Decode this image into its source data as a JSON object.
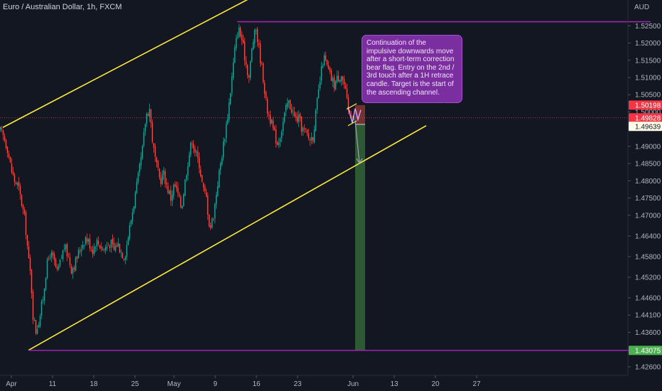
{
  "header": {
    "title": "Euro / Australian Dollar, 1h, FXCM",
    "currency": "AUD"
  },
  "annotation": {
    "text": "Continuation of the impulsive downwards move after a short-term correction bear flag. Entry on the 2nd / 3rd touch after a 1H retrace candle. Target is the start of the ascending channel."
  },
  "colors": {
    "background": "#131722",
    "up_candle": "#26a69a",
    "down_candle": "#ef5350",
    "channel": "#ffeb3b",
    "horizontal": "#9c27b0",
    "annotation": "#7b2ea0",
    "stop_zone": "#7a3134",
    "target_zone": "#2e5e36"
  },
  "price_tags": [
    {
      "label": "1.50198",
      "value": 1.50198,
      "bg": "#f23645",
      "fg": "#ffffff"
    },
    {
      "label": "1.49828",
      "value": 1.49828,
      "bg": "#f23645",
      "fg": "#ffffff"
    },
    {
      "label": "1.49639",
      "value": 1.49639,
      "bg": "#fffde7",
      "fg": "#131722"
    },
    {
      "label": "1.43075",
      "value": 1.43075,
      "bg": "#4caf50",
      "fg": "#ffffff"
    }
  ],
  "chart_data": {
    "type": "candlestick",
    "title": "Euro / Australian Dollar, 1h, FXCM",
    "y_axis": {
      "label": "AUD",
      "min": 1.4235,
      "max": 1.5325,
      "ticks": [
        "1.52500",
        "1.52000",
        "1.51500",
        "1.51000",
        "1.50500",
        "1.50000",
        "1.49000",
        "1.48500",
        "1.48000",
        "1.47500",
        "1.47000",
        "1.46400",
        "1.45800",
        "1.45200",
        "1.44600",
        "1.44100",
        "1.43600",
        "1.42600"
      ]
    },
    "x_axis": {
      "ticks": [
        "Apr",
        "11",
        "18",
        "25",
        "May",
        "9",
        "16",
        "23",
        "Jun",
        "13",
        "20",
        "27"
      ]
    },
    "price_path": [
      [
        0,
        1.4945
      ],
      [
        5,
        1.4925
      ],
      [
        10,
        1.4895
      ],
      [
        15,
        1.4835
      ],
      [
        20,
        1.48
      ],
      [
        25,
        1.4785
      ],
      [
        30,
        1.4735
      ],
      [
        35,
        1.468
      ],
      [
        40,
        1.4565
      ],
      [
        43,
        1.452
      ],
      [
        46,
        1.441
      ],
      [
        50,
        1.4365
      ],
      [
        55,
        1.44
      ],
      [
        60,
        1.446
      ],
      [
        65,
        1.455
      ],
      [
        70,
        1.459
      ],
      [
        75,
        1.457
      ],
      [
        80,
        1.453
      ],
      [
        85,
        1.457
      ],
      [
        90,
        1.461
      ],
      [
        95,
        1.4585
      ],
      [
        100,
        1.4545
      ],
      [
        105,
        1.456
      ],
      [
        110,
        1.459
      ],
      [
        115,
        1.4615
      ],
      [
        120,
        1.4635
      ],
      [
        125,
        1.462
      ],
      [
        130,
        1.46
      ],
      [
        135,
        1.4625
      ],
      [
        140,
        1.4615
      ],
      [
        145,
        1.46
      ],
      [
        150,
        1.461
      ],
      [
        155,
        1.462
      ],
      [
        160,
        1.46
      ],
      [
        165,
        1.462
      ],
      [
        170,
        1.4595
      ],
      [
        175,
        1.458
      ],
      [
        180,
        1.464
      ],
      [
        185,
        1.47
      ],
      [
        190,
        1.476
      ],
      [
        195,
        1.482
      ],
      [
        200,
        1.489
      ],
      [
        205,
        1.499
      ],
      [
        210,
        1.501
      ],
      [
        215,
        1.49
      ],
      [
        220,
        1.484
      ],
      [
        225,
        1.48
      ],
      [
        230,
        1.482
      ],
      [
        235,
        1.478
      ],
      [
        240,
        1.475
      ],
      [
        245,
        1.479
      ],
      [
        250,
        1.476
      ],
      [
        255,
        1.472
      ],
      [
        260,
        1.48
      ],
      [
        265,
        1.487
      ],
      [
        270,
        1.492
      ],
      [
        275,
        1.488
      ],
      [
        280,
        1.485
      ],
      [
        285,
        1.478
      ],
      [
        290,
        1.475
      ],
      [
        295,
        1.466
      ],
      [
        300,
        1.47
      ],
      [
        305,
        1.478
      ],
      [
        310,
        1.485
      ],
      [
        315,
        1.492
      ],
      [
        320,
        1.499
      ],
      [
        325,
        1.508
      ],
      [
        330,
        1.518
      ],
      [
        335,
        1.5245
      ],
      [
        340,
        1.521
      ],
      [
        345,
        1.515
      ],
      [
        350,
        1.51
      ],
      [
        355,
        1.52
      ],
      [
        360,
        1.524
      ],
      [
        365,
        1.517
      ],
      [
        370,
        1.51
      ],
      [
        375,
        1.501
      ],
      [
        380,
        1.498
      ],
      [
        385,
        1.494
      ],
      [
        390,
        1.491
      ],
      [
        395,
        1.494
      ],
      [
        400,
        1.499
      ],
      [
        405,
        1.503
      ],
      [
        410,
        1.501
      ],
      [
        415,
        1.498
      ],
      [
        420,
        1.498
      ],
      [
        425,
        1.495
      ],
      [
        430,
        1.494
      ],
      [
        435,
        1.492
      ],
      [
        440,
        1.493
      ],
      [
        445,
        1.501
      ],
      [
        450,
        1.509
      ],
      [
        455,
        1.516
      ],
      [
        460,
        1.513
      ],
      [
        465,
        1.51
      ],
      [
        470,
        1.508
      ],
      [
        475,
        1.51
      ],
      [
        480,
        1.511
      ],
      [
        485,
        1.507
      ],
      [
        490,
        1.5
      ],
      [
        495,
        1.499
      ],
      [
        500,
        1.499
      ]
    ],
    "channel_upper": [
      [
        4,
        1.4955
      ],
      [
        378,
        1.5358
      ]
    ],
    "channel_lower": [
      [
        40,
        1.4308
      ],
      [
        600,
        1.496
      ]
    ],
    "horizontal_levels": [
      {
        "value": 1.5262,
        "from": 334,
        "to": 916
      },
      {
        "value": 1.43075,
        "from": 40,
        "to": 916
      }
    ],
    "trade": {
      "entry": 1.49639,
      "stop": 1.50198,
      "target": 1.43075,
      "entry_ref": 1.49828,
      "from": 500,
      "to": 514
    },
    "flag": {
      "points": [
        [
          490,
          1.5015
        ],
        [
          496,
          1.4968
        ],
        [
          500,
          1.501
        ],
        [
          504,
          1.4978
        ],
        [
          508,
          1.5006
        ]
      ]
    },
    "projection": {
      "from": [
        500,
        1.4975
      ],
      "to": [
        506,
        1.4852
      ]
    }
  }
}
